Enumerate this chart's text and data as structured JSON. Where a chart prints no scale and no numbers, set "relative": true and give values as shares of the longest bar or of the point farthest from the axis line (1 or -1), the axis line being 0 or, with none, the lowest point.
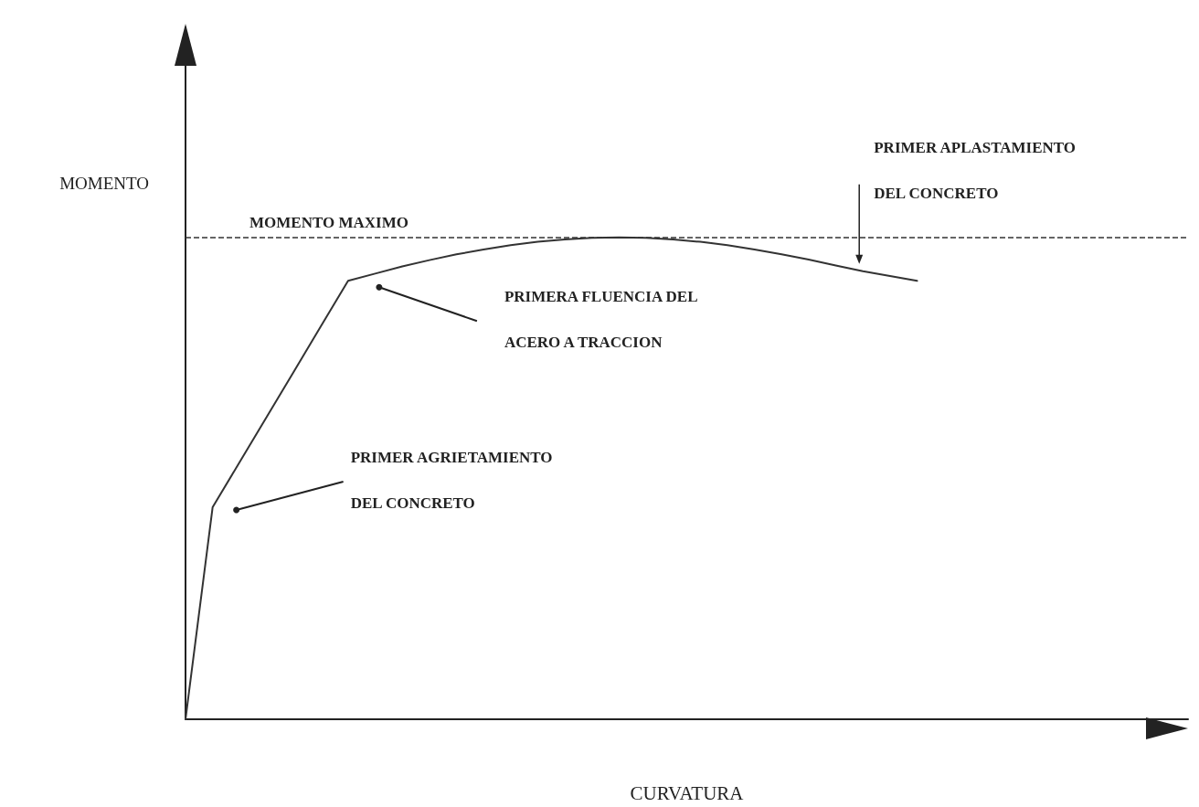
{
  "chart_data": {
    "type": "line",
    "relative": true,
    "xlabel": "CURVATURA",
    "ylabel": "MOMENTO",
    "categories": [
      null,
      null,
      null,
      null,
      null,
      null,
      null,
      null,
      null,
      null,
      null,
      null,
      null,
      null,
      null,
      null,
      null,
      null,
      null,
      null,
      null,
      null,
      null,
      null,
      null,
      null,
      null,
      null
    ],
    "series": [
      {
        "color": "#333333",
        "values": [
          0,
          0.44,
          0.534,
          0.628,
          0.722,
          0.816,
          0.91,
          0.925,
          0.94,
          0.953,
          0.965,
          0.975,
          0.984,
          0.991,
          0.996,
          0.999,
          1,
          0.999,
          0.996,
          0.991,
          0.984,
          0.975,
          0.965,
          0.954,
          0.942,
          0.93,
          0.92,
          0.91
        ]
      }
    ],
    "ref_lines": [
      {
        "axis": "y",
        "value": 1,
        "label": "MOMENTO MAXIMO",
        "line_style": "dashed",
        "color": "#333333"
      }
    ],
    "annotations": [
      "PRIMER AGRIETAMIENTO\nDEL CONCRETO",
      "PRIMERA FLUENCIA DEL\nACERO A TRACCION",
      "PRIMER APLASTAMIENTO\nDEL CONCRETO"
    ],
    "grid": false,
    "marker": "none",
    "line_style": "solid"
  }
}
